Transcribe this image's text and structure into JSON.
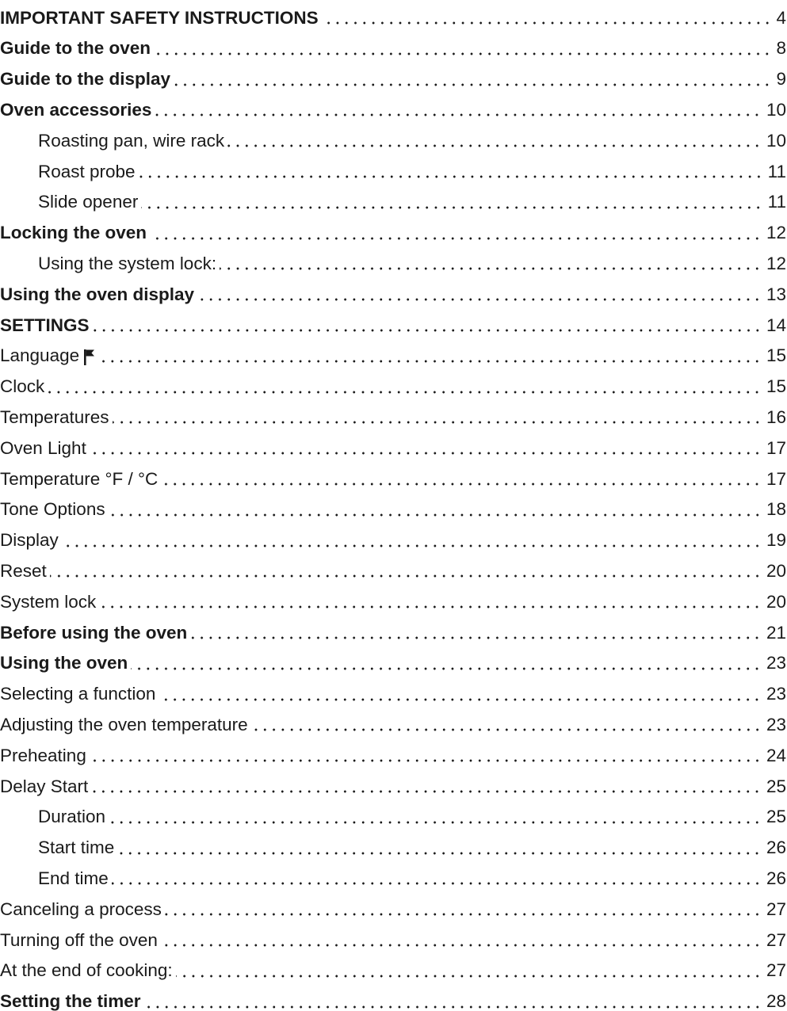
{
  "toc": {
    "entries": [
      {
        "label": "IMPORTANT SAFETY INSTRUCTIONS",
        "page": "4",
        "bold": true,
        "level": 1
      },
      {
        "label": "Guide to the oven",
        "page": "8",
        "bold": true,
        "level": 1
      },
      {
        "label": "Guide to the display",
        "page": "9",
        "bold": true,
        "level": 1
      },
      {
        "label": "Oven accessories",
        "page": "10",
        "bold": true,
        "level": 1
      },
      {
        "label": "Roasting pan, wire rack",
        "page": "10",
        "bold": false,
        "level": 2
      },
      {
        "label": "Roast probe",
        "page": "11",
        "bold": false,
        "level": 2
      },
      {
        "label": "Slide opener",
        "page": "11",
        "bold": false,
        "level": 2
      },
      {
        "label": "Locking the oven",
        "page": "12",
        "bold": true,
        "level": 1
      },
      {
        "label": "Using the system lock:",
        "page": "12",
        "bold": false,
        "level": 2
      },
      {
        "label": "Using the oven display",
        "page": "13",
        "bold": true,
        "level": 1
      },
      {
        "label": "SETTINGS",
        "page": "14",
        "bold": true,
        "level": 1
      },
      {
        "label": "Language",
        "page": "15",
        "bold": false,
        "level": 1,
        "icon": "flag-icon"
      },
      {
        "label": "Clock",
        "page": "15",
        "bold": false,
        "level": 1
      },
      {
        "label": "Temperatures",
        "page": "16",
        "bold": false,
        "level": 1
      },
      {
        "label": "Oven Light",
        "page": "17",
        "bold": false,
        "level": 1
      },
      {
        "label": "Temperature °F / °C",
        "page": "17",
        "bold": false,
        "level": 1
      },
      {
        "label": "Tone Options",
        "page": "18",
        "bold": false,
        "level": 1
      },
      {
        "label": "Display",
        "page": "19",
        "bold": false,
        "level": 1
      },
      {
        "label": "Reset",
        "page": "20",
        "bold": false,
        "level": 1
      },
      {
        "label": "System lock",
        "page": "20",
        "bold": false,
        "level": 1
      },
      {
        "label": "Before using the oven",
        "page": "21",
        "bold": true,
        "level": 1
      },
      {
        "label": "Using the oven",
        "page": "23",
        "bold": true,
        "level": 1
      },
      {
        "label": "Selecting a function",
        "page": "23",
        "bold": false,
        "level": 1
      },
      {
        "label": "Adjusting the oven temperature",
        "page": "23",
        "bold": false,
        "level": 1
      },
      {
        "label": "Preheating",
        "page": "24",
        "bold": false,
        "level": 1
      },
      {
        "label": "Delay Start",
        "page": "25",
        "bold": false,
        "level": 1
      },
      {
        "label": "Duration",
        "page": "25",
        "bold": false,
        "level": 2
      },
      {
        "label": "Start time",
        "page": "26",
        "bold": false,
        "level": 2
      },
      {
        "label": "End time",
        "page": "26",
        "bold": false,
        "level": 2
      },
      {
        "label": "Canceling a process",
        "page": "27",
        "bold": false,
        "level": 1
      },
      {
        "label": "Turning off the oven",
        "page": "27",
        "bold": false,
        "level": 1
      },
      {
        "label": "At the end of cooking:",
        "page": "27",
        "bold": false,
        "level": 1
      },
      {
        "label": "Setting the timer",
        "page": "28",
        "bold": true,
        "level": 1
      }
    ]
  }
}
